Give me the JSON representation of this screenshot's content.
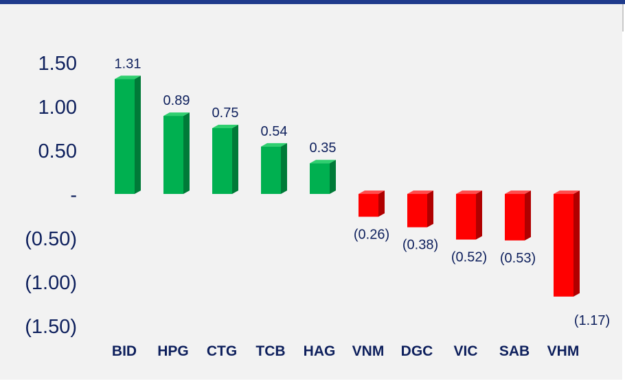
{
  "chart_data": {
    "type": "bar",
    "title": "",
    "xlabel": "",
    "ylabel": "",
    "categories": [
      "BID",
      "HPG",
      "CTG",
      "TCB",
      "HAG",
      "VNM",
      "DGC",
      "VIC",
      "SAB",
      "VHM"
    ],
    "values": [
      1.31,
      0.89,
      0.75,
      0.54,
      0.35,
      -0.26,
      -0.38,
      -0.52,
      -0.53,
      -1.17
    ],
    "value_labels": [
      "1.31",
      "0.89",
      "0.75",
      "0.54",
      "0.35",
      "(0.26)",
      "(0.38)",
      "(0.52)",
      "(0.53)",
      "(1.17)"
    ],
    "ylim": [
      -1.5,
      1.5
    ],
    "yticks": [
      1.5,
      1.0,
      0.5,
      0,
      -0.5,
      -1.0,
      -1.5
    ],
    "ytick_labels": [
      "1.50",
      "1.00",
      "0.50",
      "-",
      "(0.50)",
      "(1.00)",
      "(1.50)"
    ],
    "grid": false,
    "legend": "none",
    "colors": {
      "positive": "#00b050",
      "positive_side": "#007a38",
      "positive_top": "#2fcf6f",
      "negative": "#ff0000",
      "negative_side": "#b00000",
      "negative_top": "#ff4d4d",
      "text": "#0d1f5c"
    }
  }
}
